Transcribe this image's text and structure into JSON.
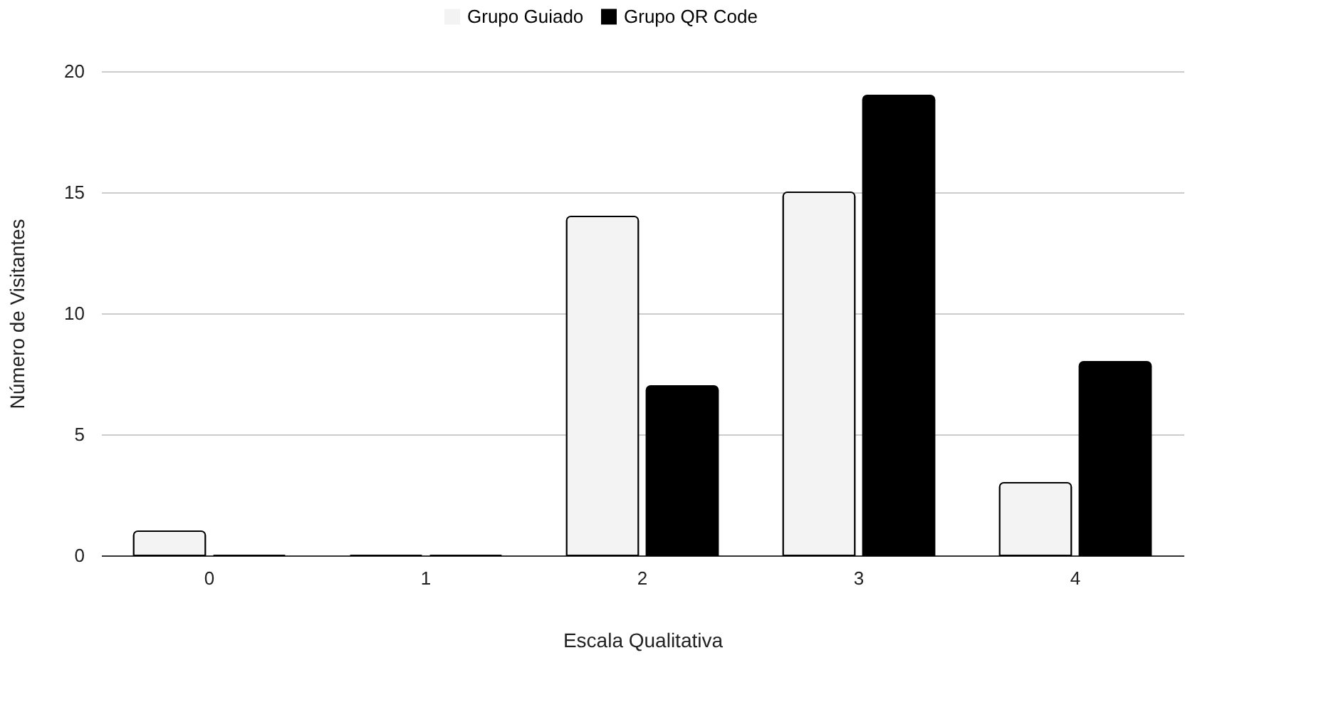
{
  "chart_data": {
    "type": "bar",
    "xlabel": "Escala Qualitativa",
    "ylabel": "Número de Visitantes",
    "categories": [
      "0",
      "1",
      "2",
      "3",
      "4"
    ],
    "series": [
      {
        "name": "Grupo Guiado",
        "color": "#f3f3f3",
        "values": [
          1,
          0,
          14,
          15,
          3
        ]
      },
      {
        "name": "Grupo QR Code",
        "color": "#000000",
        "values": [
          0,
          0,
          7,
          19,
          8
        ]
      }
    ],
    "ylim": [
      0,
      20
    ],
    "yticks": [
      0,
      5,
      10,
      15,
      20
    ],
    "grid": "y",
    "legend": "top"
  }
}
